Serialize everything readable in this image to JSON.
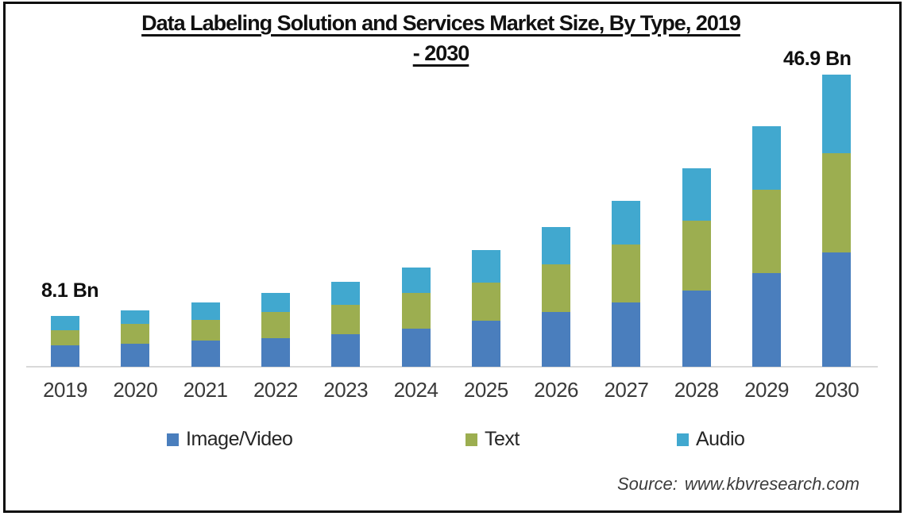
{
  "title": {
    "line1": "Data Labeling Solution and Services Market Size, By Type, 2019",
    "line2": "- 2030"
  },
  "annotations": {
    "first_bar_label": "8.1 Bn",
    "last_bar_label": "46.9 Bn"
  },
  "source": "Source: www.kbvresearch.com",
  "colors": {
    "image_video": "#4a7ebd",
    "text": "#9cae50",
    "audio": "#41a8cf",
    "baseline": "#d9d9d9"
  },
  "chart_data": {
    "type": "bar",
    "stacked": true,
    "title": "Data Labeling Solution and Services Market Size, By Type, 2019 - 2030",
    "unit": "USD Bn",
    "categories": [
      "2019",
      "2020",
      "2021",
      "2022",
      "2023",
      "2024",
      "2025",
      "2026",
      "2027",
      "2028",
      "2029",
      "2030"
    ],
    "series": [
      {
        "name": "Image/Video",
        "color": "#4a7ebd",
        "values": [
          3.5,
          3.7,
          4.2,
          4.6,
          5.2,
          6.1,
          7.4,
          8.8,
          10.3,
          12.2,
          15.0,
          18.3
        ]
      },
      {
        "name": "Text",
        "color": "#9cae50",
        "values": [
          2.4,
          3.2,
          3.3,
          4.2,
          4.8,
          5.7,
          6.1,
          7.6,
          9.3,
          11.2,
          13.4,
          16.0
        ]
      },
      {
        "name": "Audio",
        "color": "#41a8cf",
        "values": [
          2.2,
          2.1,
          2.8,
          3.1,
          3.6,
          4.1,
          5.2,
          6.0,
          7.0,
          8.5,
          10.2,
          12.6
        ]
      }
    ],
    "totals_estimated": [
      8.1,
      9.0,
      10.3,
      11.9,
      13.6,
      15.9,
      18.7,
      22.4,
      26.6,
      31.9,
      38.6,
      46.9
    ],
    "labeled_totals": {
      "2019": "8.1 Bn",
      "2030": "46.9 Bn"
    },
    "ylim": [
      0,
      50
    ],
    "grid": false,
    "y_axis_shown": false,
    "legend_position": "bottom"
  },
  "legend": {
    "items": [
      {
        "label": "Image/Video",
        "color": "#4a7ebd",
        "x": 210
      },
      {
        "label": "Text",
        "color": "#9cae50",
        "x": 586
      },
      {
        "label": "Audio",
        "color": "#41a8cf",
        "x": 852
      }
    ]
  }
}
